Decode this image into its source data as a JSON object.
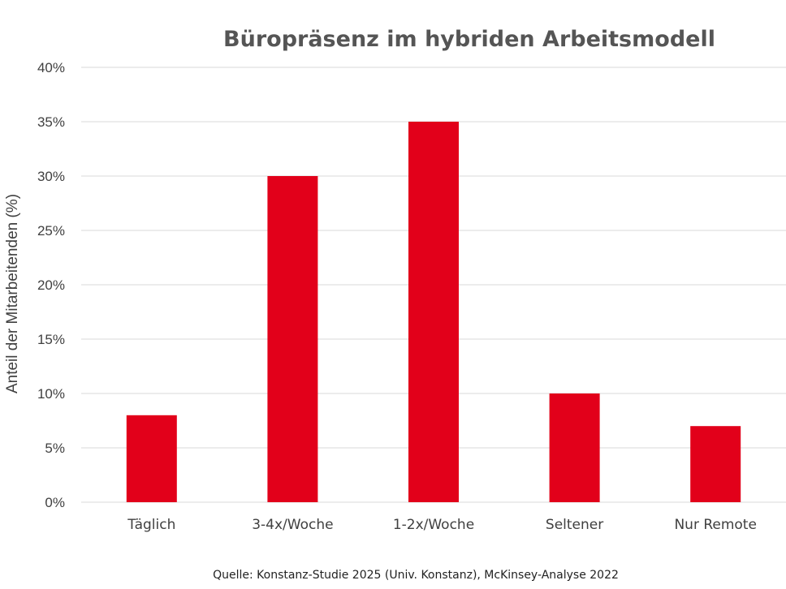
{
  "chart_data": {
    "type": "bar",
    "title": "Büropräsenz im hybriden Arbeitsmodell",
    "xlabel": "",
    "ylabel": "Anteil der Mitarbeitenden (%)",
    "categories": [
      "Täglich",
      "3-4x/Woche",
      "1-2x/Woche",
      "Seltener",
      "Nur Remote"
    ],
    "values": [
      8,
      30,
      35,
      10,
      7
    ],
    "ylim": [
      0,
      40
    ],
    "yticks": [
      0,
      5,
      10,
      15,
      20,
      25,
      30,
      35,
      40
    ],
    "ytick_labels": [
      "0%",
      "5%",
      "10%",
      "15%",
      "20%",
      "25%",
      "30%",
      "35%",
      "40%"
    ],
    "grid": true,
    "legend": "none",
    "bar_color": "#e2001a",
    "source": "Quelle: Konstanz-Studie 2025 (Univ. Konstanz), McKinsey-Analyse 2022"
  }
}
